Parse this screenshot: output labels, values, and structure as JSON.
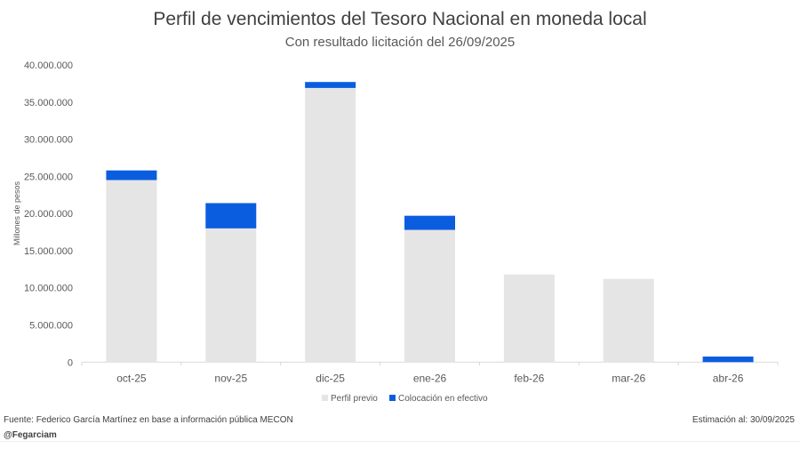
{
  "chart_data": {
    "type": "bar",
    "stacked": true,
    "title": "Perfil de vencimientos del Tesoro Nacional en moneda local",
    "subtitle": "Con resultado licitación del 26/09/2025",
    "ylabel": "Millones de pesos",
    "xlabel": "",
    "ylim": [
      0,
      40000000
    ],
    "yticks": [
      0,
      5000000,
      10000000,
      15000000,
      20000000,
      25000000,
      30000000,
      35000000,
      40000000
    ],
    "ytick_labels": [
      "0",
      "5.000.000",
      "10.000.000",
      "15.000.000",
      "20.000.000",
      "25.000.000",
      "30.000.000",
      "35.000.000",
      "40.000.000"
    ],
    "categories": [
      "oct-25",
      "nov-25",
      "dic-25",
      "ene-26",
      "feb-26",
      "mar-26",
      "abr-26"
    ],
    "series": [
      {
        "name": "Perfil previo",
        "color": "#e6e5e5",
        "values": [
          24500000,
          18000000,
          36900000,
          17800000,
          11800000,
          11200000,
          0
        ]
      },
      {
        "name": "Colocación en efectivo",
        "color": "#0b5ddf",
        "values": [
          1300000,
          3400000,
          800000,
          1900000,
          0,
          0,
          750000
        ]
      }
    ],
    "grid": false,
    "legend": "bottom"
  },
  "footer": {
    "source": "Fuente: Federico García Martínez en base a información pública MECON",
    "handle": "@Fegarciam",
    "estimate": "Estimación al: 30/09/2025"
  }
}
